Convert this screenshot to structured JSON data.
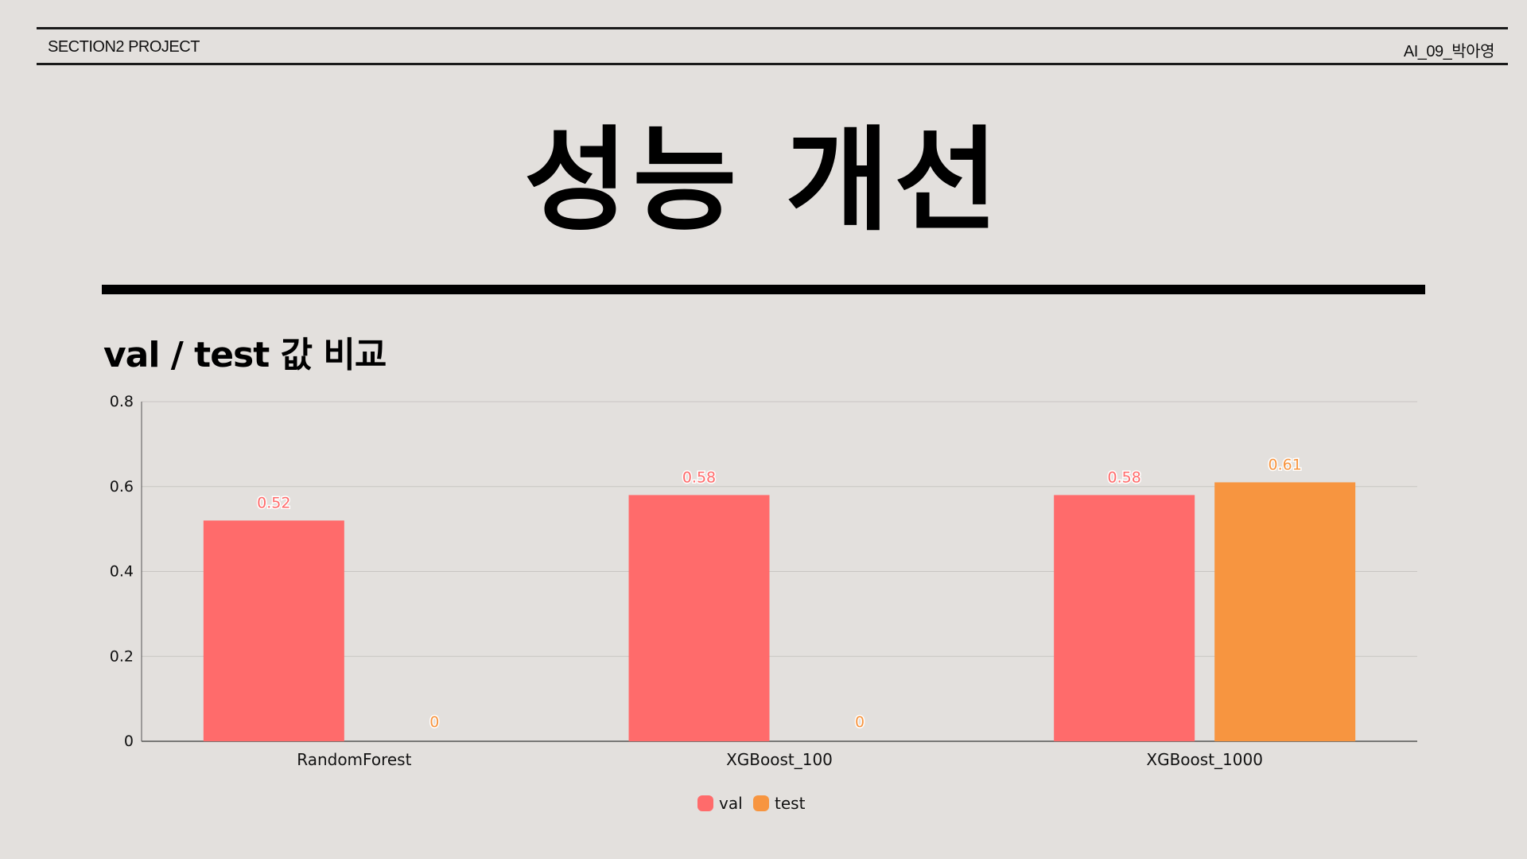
{
  "header": {
    "left": "SECTION2 PROJECT",
    "right": "AI_09_박아영"
  },
  "page_title": "성능 개선",
  "section_heading": "val / test 값 비교",
  "chart_data": {
    "type": "bar",
    "categories": [
      "RandomForest",
      "XGBoost_100",
      "XGBoost_1000"
    ],
    "series": [
      {
        "name": "val",
        "values": [
          0.52,
          0.58,
          0.58
        ],
        "color": "#ff6b6b"
      },
      {
        "name": "test",
        "values": [
          0,
          0,
          0.61
        ],
        "color": "#f79540"
      }
    ],
    "ylim": [
      0,
      0.8
    ],
    "yticks": [
      "0",
      "0.2",
      "0.4",
      "0.6",
      "0.8"
    ],
    "data_labels": [
      [
        "0.52",
        "0.58",
        "0.58"
      ],
      [
        "0",
        "0",
        "0.61"
      ]
    ],
    "grid": true,
    "legend_position": "bottom"
  }
}
